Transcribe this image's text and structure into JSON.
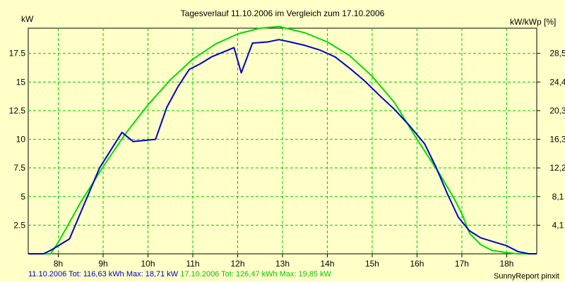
{
  "chart_data": {
    "type": "line",
    "title": "Tagesverlauf 11.10.2006 im Vergleich zum 17.10.2006",
    "ylabel": "kW",
    "ylabel_right": "kW/kWp [%]",
    "xlim": [
      7.33,
      18.67
    ],
    "ylim": [
      0,
      19.7
    ],
    "x_ticks": [
      {
        "x": 8,
        "label": "8h"
      },
      {
        "x": 9,
        "label": "9h"
      },
      {
        "x": 10,
        "label": "10h"
      },
      {
        "x": 11,
        "label": "11h"
      },
      {
        "x": 12,
        "label": "12h"
      },
      {
        "x": 13,
        "label": "13h"
      },
      {
        "x": 14,
        "label": "14h"
      },
      {
        "x": 15,
        "label": "15h"
      },
      {
        "x": 16,
        "label": "16h"
      },
      {
        "x": 17,
        "label": "17h"
      },
      {
        "x": 18,
        "label": "18h"
      }
    ],
    "y_ticks": [
      {
        "y": 2.5,
        "label": "2.5"
      },
      {
        "y": 5,
        "label": "5"
      },
      {
        "y": 7.5,
        "label": "7.5"
      },
      {
        "y": 10,
        "label": "10"
      },
      {
        "y": 12.5,
        "label": "12.5"
      },
      {
        "y": 15,
        "label": "15"
      },
      {
        "y": 17.5,
        "label": "17.5"
      }
    ],
    "y2_ticks": [
      {
        "y": 2.5,
        "label": "4,1"
      },
      {
        "y": 5,
        "label": "8,1"
      },
      {
        "y": 7.5,
        "label": "12,2"
      },
      {
        "y": 10,
        "label": "16,3"
      },
      {
        "y": 12.5,
        "label": "20,3"
      },
      {
        "y": 15,
        "label": "24,4"
      },
      {
        "y": 17.5,
        "label": "28,5"
      }
    ],
    "grid": true,
    "series": [
      {
        "name": "11.10.2006",
        "color": "#0000c8",
        "x": [
          7.33,
          7.67,
          7.83,
          8.0,
          8.25,
          8.92,
          9.42,
          9.67,
          9.92,
          10.17,
          10.42,
          10.67,
          10.92,
          11.17,
          11.42,
          11.92,
          12.08,
          12.33,
          12.67,
          12.92,
          13.17,
          13.5,
          13.83,
          14.17,
          14.5,
          14.83,
          15.17,
          15.5,
          15.83,
          16.17,
          16.42,
          16.67,
          16.92,
          17.17,
          17.42,
          17.75,
          18.0,
          18.25,
          18.5,
          18.67
        ],
        "y": [
          0.0,
          0.0,
          0.3,
          0.7,
          1.3,
          7.5,
          10.6,
          9.8,
          9.9,
          10.0,
          12.8,
          14.6,
          16.1,
          16.6,
          17.2,
          18.0,
          15.8,
          18.4,
          18.5,
          18.7,
          18.5,
          18.2,
          17.8,
          17.2,
          16.2,
          15.1,
          13.8,
          12.6,
          11.2,
          9.6,
          7.6,
          5.3,
          3.2,
          2.0,
          1.4,
          1.0,
          0.7,
          0.2,
          0.0,
          0.0
        ]
      },
      {
        "name": "17.10.2006",
        "color": "#00dc00",
        "x": [
          7.33,
          7.83,
          8.0,
          8.5,
          9.0,
          9.5,
          10.0,
          10.5,
          11.0,
          11.5,
          12.0,
          12.5,
          12.92,
          13.5,
          14.0,
          14.5,
          15.0,
          15.5,
          16.0,
          16.5,
          16.83,
          17.0,
          17.17,
          17.42,
          17.67,
          18.0,
          18.25,
          18.67
        ],
        "y": [
          0.0,
          0.0,
          1.0,
          4.5,
          7.6,
          10.5,
          13.0,
          15.2,
          17.0,
          18.3,
          19.2,
          19.7,
          19.85,
          19.3,
          18.5,
          17.3,
          15.5,
          13.2,
          10.0,
          7.0,
          4.8,
          3.5,
          1.8,
          0.8,
          0.3,
          0.1,
          0.0,
          0.0
        ]
      }
    ]
  },
  "footer": {
    "series1_text": "11.10.2006 Tot: 116,63 kWh Max: 18,71 kW",
    "series2_text": "17.10.2006 Tot: 126,47 kWh Max: 19,85 kW",
    "credit": "SunnyReport pinxit"
  }
}
